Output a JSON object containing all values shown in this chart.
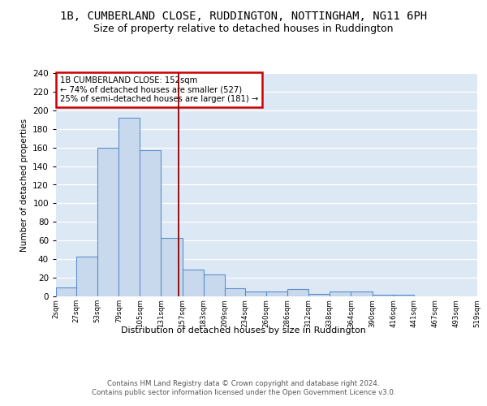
{
  "title": "1B, CUMBERLAND CLOSE, RUDDINGTON, NOTTINGHAM, NG11 6PH",
  "subtitle": "Size of property relative to detached houses in Ruddington",
  "xlabel": "Distribution of detached houses by size in Ruddington",
  "ylabel": "Number of detached properties",
  "bin_edges": [
    2,
    27,
    53,
    79,
    105,
    131,
    157,
    183,
    209,
    234,
    260,
    286,
    312,
    338,
    364,
    390,
    416,
    441,
    467,
    493,
    519
  ],
  "bin_labels": [
    "2sqm",
    "27sqm",
    "53sqm",
    "79sqm",
    "105sqm",
    "131sqm",
    "157sqm",
    "183sqm",
    "209sqm",
    "234sqm",
    "260sqm",
    "286sqm",
    "312sqm",
    "338sqm",
    "364sqm",
    "390sqm",
    "416sqm",
    "441sqm",
    "467sqm",
    "493sqm",
    "519sqm"
  ],
  "bar_values": [
    10,
    43,
    160,
    192,
    157,
    63,
    29,
    24,
    9,
    5,
    5,
    8,
    3,
    5,
    5,
    2,
    2
  ],
  "bar_color": "#c9d9ed",
  "bar_edge_color": "#5b8fc9",
  "property_line_value": 152,
  "property_line_color": "#8b0000",
  "annotation_text": "1B CUMBERLAND CLOSE: 152sqm\n← 74% of detached houses are smaller (527)\n25% of semi-detached houses are larger (181) →",
  "annotation_box_color": "#ffffff",
  "annotation_box_edge": "#cc0000",
  "ylim": [
    0,
    240
  ],
  "yticks": [
    0,
    20,
    40,
    60,
    80,
    100,
    120,
    140,
    160,
    180,
    200,
    220,
    240
  ],
  "footer_text": "Contains HM Land Registry data © Crown copyright and database right 2024.\nContains public sector information licensed under the Open Government Licence v3.0.",
  "background_color": "#dde8f5",
  "grid_color": "#ffffff",
  "title_fontsize": 10,
  "subtitle_fontsize": 9
}
